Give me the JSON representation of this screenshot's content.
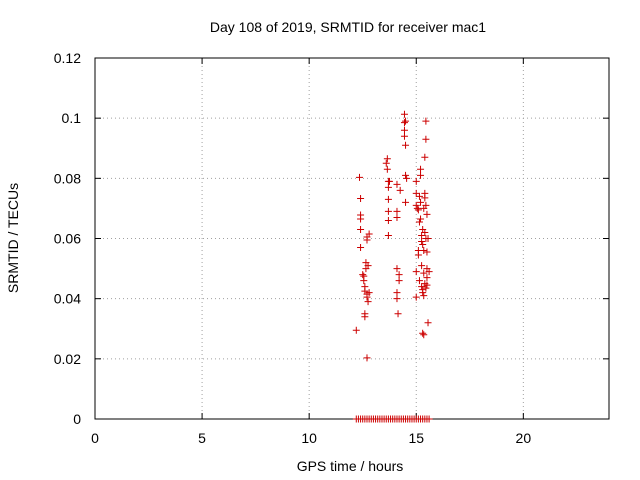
{
  "chart_data": {
    "type": "scatter",
    "title": "Day 108 of 2019, SRMTID for receiver mac1",
    "xlabel": "GPS time / hours",
    "ylabel": "SRMTID / TECUs",
    "xlim": [
      0,
      24
    ],
    "ylim": [
      0,
      0.12
    ],
    "xticks": [
      0,
      5,
      10,
      15,
      20
    ],
    "xtick_labels": [
      "0",
      "5",
      "10",
      "15",
      "20"
    ],
    "yticks": [
      0,
      0.02,
      0.04,
      0.06,
      0.08,
      0.1,
      0.12
    ],
    "ytick_labels": [
      "0",
      "0.02",
      "0.04",
      "0.06",
      "0.08",
      "0.1",
      "0.12"
    ],
    "grid": true,
    "marker": "+",
    "color": "#cc0000",
    "points": [
      [
        12.2,
        0.0295
      ],
      [
        12.35,
        0.0803
      ],
      [
        12.4,
        0.0733
      ],
      [
        12.4,
        0.0678
      ],
      [
        12.4,
        0.0665
      ],
      [
        12.4,
        0.063
      ],
      [
        12.4,
        0.057
      ],
      [
        12.5,
        0.048
      ],
      [
        12.55,
        0.0475
      ],
      [
        12.55,
        0.046
      ],
      [
        12.6,
        0.044
      ],
      [
        12.6,
        0.0425
      ],
      [
        12.6,
        0.035
      ],
      [
        12.6,
        0.034
      ],
      [
        12.65,
        0.052
      ],
      [
        12.65,
        0.05
      ],
      [
        12.7,
        0.0605
      ],
      [
        12.7,
        0.0595
      ],
      [
        12.7,
        0.0415
      ],
      [
        12.7,
        0.0405
      ],
      [
        12.7,
        0.0203
      ],
      [
        12.75,
        0.051
      ],
      [
        12.75,
        0.039
      ],
      [
        12.8,
        0.0615
      ],
      [
        12.8,
        0.042
      ],
      [
        13.6,
        0.085
      ],
      [
        13.65,
        0.0865
      ],
      [
        13.65,
        0.083
      ],
      [
        13.7,
        0.079
      ],
      [
        13.7,
        0.077
      ],
      [
        13.7,
        0.073
      ],
      [
        13.7,
        0.069
      ],
      [
        13.7,
        0.066
      ],
      [
        13.7,
        0.061
      ],
      [
        13.75,
        0.079
      ],
      [
        14.1,
        0.078
      ],
      [
        14.1,
        0.069
      ],
      [
        14.1,
        0.067
      ],
      [
        14.1,
        0.05
      ],
      [
        14.1,
        0.042
      ],
      [
        14.1,
        0.04
      ],
      [
        14.15,
        0.035
      ],
      [
        14.2,
        0.048
      ],
      [
        14.2,
        0.046
      ],
      [
        14.25,
        0.076
      ],
      [
        14.45,
        0.1013
      ],
      [
        14.45,
        0.0985
      ],
      [
        14.45,
        0.096
      ],
      [
        14.45,
        0.094
      ],
      [
        14.5,
        0.091
      ],
      [
        14.5,
        0.099
      ],
      [
        14.5,
        0.081
      ],
      [
        14.55,
        0.08
      ],
      [
        14.5,
        0.072
      ],
      [
        15.0,
        0.079
      ],
      [
        15.0,
        0.075
      ],
      [
        15.0,
        0.071
      ],
      [
        15.0,
        0.049
      ],
      [
        15.0,
        0.0405
      ],
      [
        15.05,
        0.07
      ],
      [
        15.1,
        0.0695
      ],
      [
        15.1,
        0.056
      ],
      [
        15.1,
        0.0545
      ],
      [
        15.15,
        0.074
      ],
      [
        15.15,
        0.0655
      ],
      [
        15.15,
        0.046
      ],
      [
        15.2,
        0.083
      ],
      [
        15.2,
        0.081
      ],
      [
        15.2,
        0.072
      ],
      [
        15.2,
        0.0665
      ],
      [
        15.25,
        0.061
      ],
      [
        15.25,
        0.059
      ],
      [
        15.25,
        0.051
      ],
      [
        15.25,
        0.044
      ],
      [
        15.3,
        0.063
      ],
      [
        15.3,
        0.058
      ],
      [
        15.3,
        0.043
      ],
      [
        15.3,
        0.042
      ],
      [
        15.3,
        0.0285
      ],
      [
        15.35,
        0.07
      ],
      [
        15.35,
        0.056
      ],
      [
        15.35,
        0.0485
      ],
      [
        15.35,
        0.041
      ],
      [
        15.35,
        0.028
      ],
      [
        15.4,
        0.087
      ],
      [
        15.4,
        0.075
      ],
      [
        15.4,
        0.0735
      ],
      [
        15.4,
        0.062
      ],
      [
        15.4,
        0.045
      ],
      [
        15.45,
        0.099
      ],
      [
        15.45,
        0.093
      ],
      [
        15.45,
        0.071
      ],
      [
        15.45,
        0.06
      ],
      [
        15.45,
        0.0435
      ],
      [
        15.5,
        0.068
      ],
      [
        15.5,
        0.0555
      ],
      [
        15.5,
        0.05
      ],
      [
        15.5,
        0.047
      ],
      [
        15.5,
        0.0445
      ],
      [
        15.55,
        0.032
      ],
      [
        15.55,
        0.06
      ],
      [
        15.6,
        0.049
      ],
      [
        12.2,
        0
      ],
      [
        12.3,
        0
      ],
      [
        12.4,
        0
      ],
      [
        12.5,
        0
      ],
      [
        12.6,
        0
      ],
      [
        12.7,
        0
      ],
      [
        12.8,
        0
      ],
      [
        12.9,
        0
      ],
      [
        13.0,
        0
      ],
      [
        13.1,
        0
      ],
      [
        13.2,
        0
      ],
      [
        13.3,
        0
      ],
      [
        13.4,
        0
      ],
      [
        13.5,
        0
      ],
      [
        13.6,
        0
      ],
      [
        13.7,
        0
      ],
      [
        13.8,
        0
      ],
      [
        13.9,
        0
      ],
      [
        14.0,
        0
      ],
      [
        14.1,
        0
      ],
      [
        14.2,
        0
      ],
      [
        14.3,
        0
      ],
      [
        14.4,
        0
      ],
      [
        14.5,
        0
      ],
      [
        14.6,
        0
      ],
      [
        14.7,
        0
      ],
      [
        14.8,
        0
      ],
      [
        14.9,
        0
      ],
      [
        15.0,
        0
      ],
      [
        15.1,
        0
      ],
      [
        15.2,
        0
      ],
      [
        15.3,
        0
      ],
      [
        15.4,
        0
      ],
      [
        15.5,
        0
      ],
      [
        15.6,
        0
      ]
    ]
  }
}
